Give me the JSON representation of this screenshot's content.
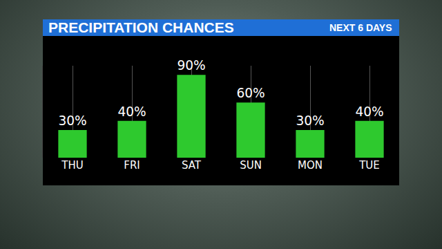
{
  "chart_data": {
    "type": "bar",
    "title": "PRECIPITATION CHANCES",
    "subtitle": "NEXT 6 DAYS",
    "categories": [
      "THU",
      "FRI",
      "SAT",
      "SUN",
      "MON",
      "TUE"
    ],
    "values": [
      30,
      40,
      90,
      60,
      30,
      40
    ],
    "value_labels": [
      "30%",
      "40%",
      "90%",
      "60%",
      "30%",
      "40%"
    ],
    "color": "#2ec92e",
    "ylim": [
      0,
      100
    ],
    "grid": true,
    "data_labels": true,
    "tick_labels": "x"
  }
}
